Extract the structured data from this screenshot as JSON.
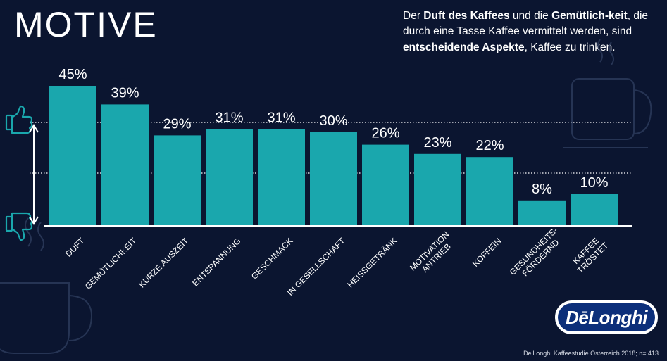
{
  "page": {
    "title": "MOTIVE",
    "headline": {
      "segments": [
        {
          "text": "Der ",
          "bold": false
        },
        {
          "text": "Duft des Kaffees",
          "bold": true
        },
        {
          "text": " und die ",
          "bold": false
        },
        {
          "text": "Gemütlich-keit",
          "bold": true
        },
        {
          "text": ", die durch eine Tasse Kaffee vermittelt werden, sind ",
          "bold": false
        },
        {
          "text": "entscheidende Aspekte",
          "bold": true
        },
        {
          "text": ", Kaffee zu trinken.",
          "bold": false
        }
      ]
    },
    "source": "De'Longhi Kaffeestudie Österreich 2018; n= 413",
    "logo": "DēLonghi"
  },
  "colors": {
    "background": "#0b1530",
    "bar": "#1aa7ad",
    "accent_icon": "#1aa7ad",
    "text": "#ffffff"
  },
  "icons": [
    "thumbs-up-icon",
    "thumbs-down-icon",
    "coffee-cup-icon"
  ],
  "chart_data": {
    "type": "bar",
    "categories": [
      [
        "DUFT"
      ],
      [
        "GEMÜTLICHKEIT"
      ],
      [
        "KURZE AUSZEIT"
      ],
      [
        "ENTSPANNUNG"
      ],
      [
        "GESCHMACK"
      ],
      [
        "IN GESELLSCHAFT"
      ],
      [
        "HEISSGETRÄNK"
      ],
      [
        "MOTIVATION",
        "ANTRIEB"
      ],
      [
        "KOFFEIN"
      ],
      [
        "GESUNDHEITS-",
        "FÖRDERND"
      ],
      [
        "KAFFEE",
        "TRÖSTET"
      ]
    ],
    "values": [
      45,
      39,
      29,
      31,
      31,
      30,
      26,
      23,
      22,
      8,
      10
    ],
    "data_labels": [
      "45%",
      "39%",
      "29%",
      "31%",
      "31%",
      "30%",
      "26%",
      "23%",
      "22%",
      "8%",
      "10%"
    ],
    "unit": "%",
    "ylim": [
      0,
      45
    ],
    "title": "",
    "xlabel": "",
    "ylabel": "",
    "grid": false,
    "legend": "none"
  }
}
